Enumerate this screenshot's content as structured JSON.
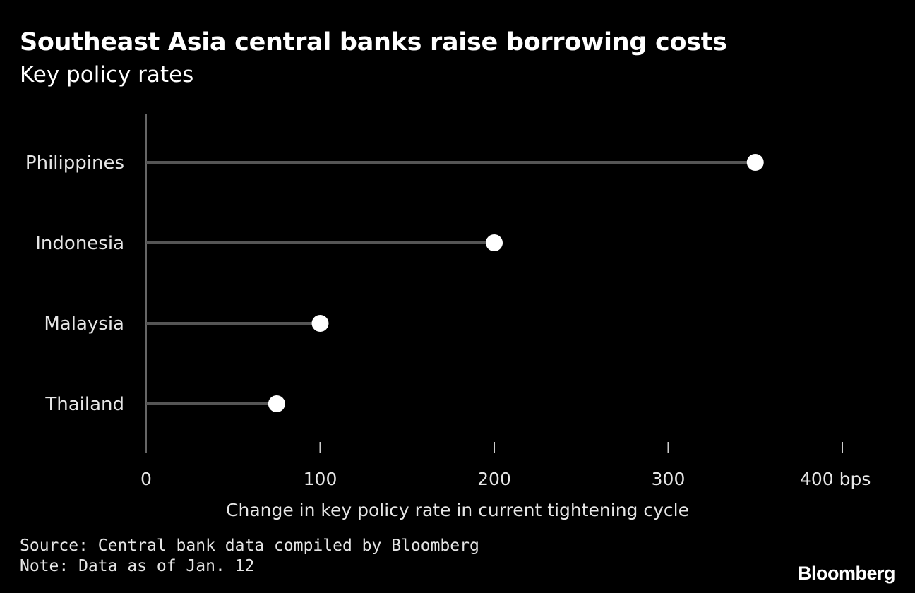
{
  "header": {
    "title": "Southeast Asia central banks raise borrowing costs",
    "subtitle": "Key policy rates"
  },
  "chart_data": {
    "type": "lollipop",
    "categories": [
      "Philippines",
      "Indonesia",
      "Malaysia",
      "Thailand"
    ],
    "values": [
      350,
      200,
      100,
      75
    ],
    "xlim": [
      0,
      400
    ],
    "x_ticks": [
      0,
      100,
      200,
      300,
      400
    ],
    "x_tick_labels": [
      "0",
      "100",
      "200",
      "300",
      "400 bps"
    ],
    "xlabel": "Change in key policy rate in current tightening cycle",
    "orientation": "horizontal",
    "grid": false
  },
  "footer": {
    "source": "Source: Central bank data compiled by Bloomberg",
    "note": "Note: Data as of Jan. 12",
    "brand": "Bloomberg"
  },
  "colors": {
    "background": "#000000",
    "marker": "#ffffff",
    "stem": "#555555",
    "axis": "#666666",
    "text": "#e6e6e6"
  }
}
